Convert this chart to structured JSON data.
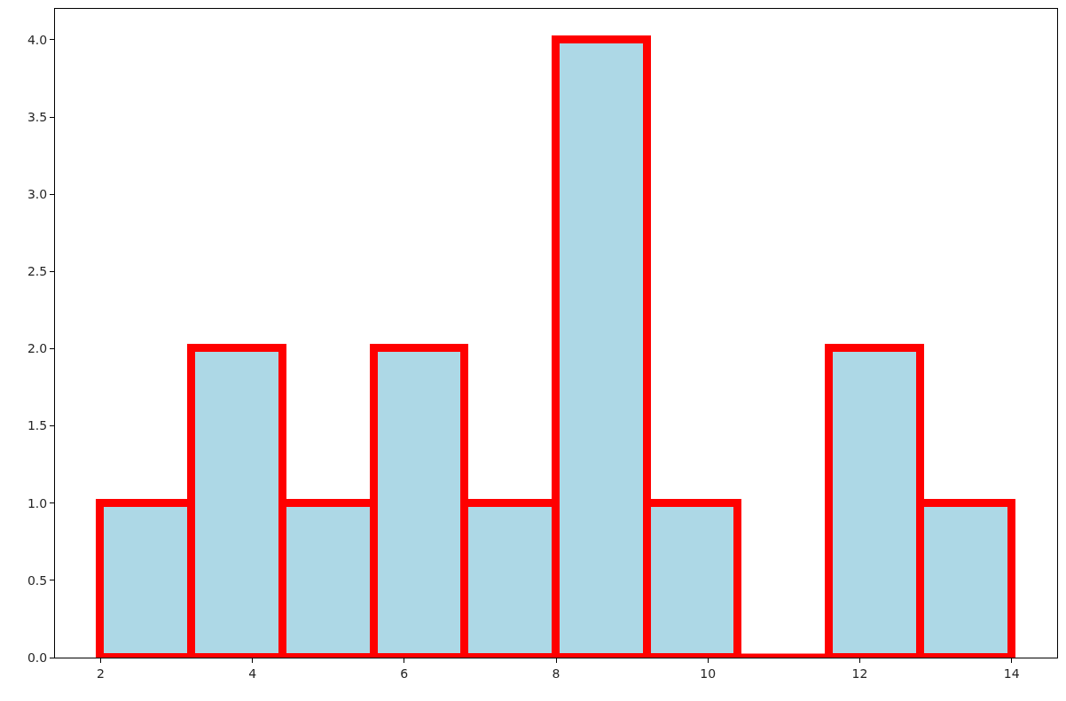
{
  "chart_data": {
    "type": "histogram",
    "bins": [
      2,
      3.2,
      4.4,
      5.6,
      6.8,
      8,
      9.2,
      10.4,
      11.6,
      12.8,
      14
    ],
    "values": [
      1,
      2,
      1,
      2,
      1,
      4,
      1,
      0,
      2,
      1
    ],
    "color": "#add8e6",
    "xlim": [
      1.4,
      14.6
    ],
    "xticks": [
      2,
      4,
      6,
      8,
      10,
      12,
      14
    ],
    "ylim": [
      0,
      4.2
    ],
    "yticks": [
      {
        "value": 0,
        "label": "0.0"
      },
      {
        "value": 0.5,
        "label": "0.5"
      },
      {
        "value": 1,
        "label": "1.0"
      },
      {
        "value": 1.5,
        "label": "1.5"
      },
      {
        "value": 2,
        "label": "2.0"
      },
      {
        "value": 2.5,
        "label": "2.5"
      },
      {
        "value": 3,
        "label": "3.0"
      },
      {
        "value": 3.5,
        "label": "3.5"
      },
      {
        "value": 4,
        "label": "4.0"
      }
    ],
    "grid": false
  }
}
